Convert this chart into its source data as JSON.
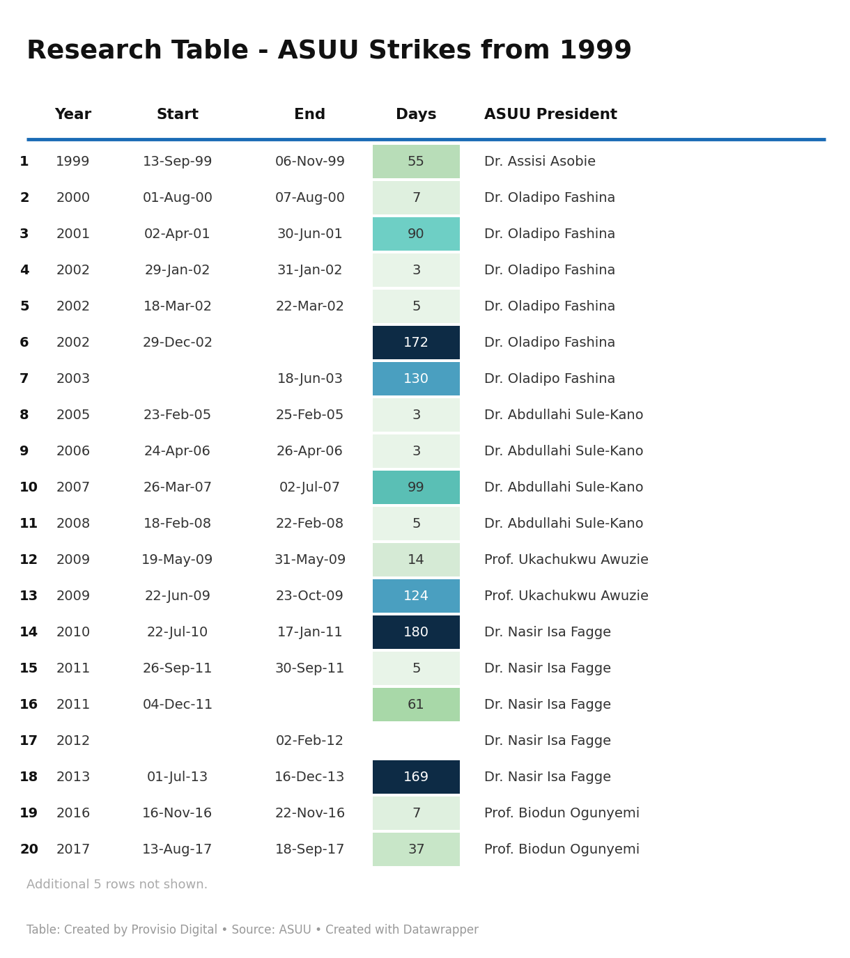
{
  "title": "Research Table - ASUU Strikes from 1999",
  "columns": [
    "Year",
    "Start",
    "End",
    "Days",
    "ASUU President"
  ],
  "rows": [
    [
      "1",
      "1999",
      "13-Sep-99",
      "06-Nov-99",
      "55",
      "Dr. Assisi Asobie"
    ],
    [
      "2",
      "2000",
      "01-Aug-00",
      "07-Aug-00",
      "7",
      "Dr. Oladipo Fashina"
    ],
    [
      "3",
      "2001",
      "02-Apr-01",
      "30-Jun-01",
      "90",
      "Dr. Oladipo Fashina"
    ],
    [
      "4",
      "2002",
      "29-Jan-02",
      "31-Jan-02",
      "3",
      "Dr. Oladipo Fashina"
    ],
    [
      "5",
      "2002",
      "18-Mar-02",
      "22-Mar-02",
      "5",
      "Dr. Oladipo Fashina"
    ],
    [
      "6",
      "2002",
      "29-Dec-02",
      "",
      "172",
      "Dr. Oladipo Fashina"
    ],
    [
      "7",
      "2003",
      "",
      "18-Jun-03",
      "130",
      "Dr. Oladipo Fashina"
    ],
    [
      "8",
      "2005",
      "23-Feb-05",
      "25-Feb-05",
      "3",
      "Dr. Abdullahi Sule-Kano"
    ],
    [
      "9",
      "2006",
      "24-Apr-06",
      "26-Apr-06",
      "3",
      "Dr. Abdullahi Sule-Kano"
    ],
    [
      "10",
      "2007",
      "26-Mar-07",
      "02-Jul-07",
      "99",
      "Dr. Abdullahi Sule-Kano"
    ],
    [
      "11",
      "2008",
      "18-Feb-08",
      "22-Feb-08",
      "5",
      "Dr. Abdullahi Sule-Kano"
    ],
    [
      "12",
      "2009",
      "19-May-09",
      "31-May-09",
      "14",
      "Prof. Ukachukwu Awuzie"
    ],
    [
      "13",
      "2009",
      "22-Jun-09",
      "23-Oct-09",
      "124",
      "Prof. Ukachukwu Awuzie"
    ],
    [
      "14",
      "2010",
      "22-Jul-10",
      "17-Jan-11",
      "180",
      "Dr. Nasir Isa Fagge"
    ],
    [
      "15",
      "2011",
      "26-Sep-11",
      "30-Sep-11",
      "5",
      "Dr. Nasir Isa Fagge"
    ],
    [
      "16",
      "2011",
      "04-Dec-11",
      "",
      "61",
      "Dr. Nasir Isa Fagge"
    ],
    [
      "17",
      "2012",
      "",
      "02-Feb-12",
      "",
      "Dr. Nasir Isa Fagge"
    ],
    [
      "18",
      "2013",
      "01-Jul-13",
      "16-Dec-13",
      "169",
      "Dr. Nasir Isa Fagge"
    ],
    [
      "19",
      "2016",
      "16-Nov-16",
      "22-Nov-16",
      "7",
      "Prof. Biodun Ogunyemi"
    ],
    [
      "20",
      "2017",
      "13-Aug-17",
      "18-Sep-17",
      "37",
      "Prof. Biodun Ogunyemi"
    ]
  ],
  "days_values": [
    55,
    7,
    90,
    3,
    5,
    172,
    130,
    3,
    3,
    99,
    5,
    14,
    124,
    180,
    5,
    61,
    null,
    169,
    7,
    37
  ],
  "footer_note": "Additional 5 rows not shown.",
  "footer_credit": "Table: Created by Provisio Digital • Source: ASUU • Created with Datawrapper",
  "header_line_color": "#1a6bb5",
  "bg_color": "#ffffff",
  "title_color": "#111111",
  "col_header_color": "#111111",
  "row_num_color": "#111111",
  "cell_text_color": "#333333",
  "footer_note_color": "#aaaaaa",
  "footer_credit_color": "#999999",
  "fig_width": 12.2,
  "fig_height": 13.76,
  "dpi": 100
}
